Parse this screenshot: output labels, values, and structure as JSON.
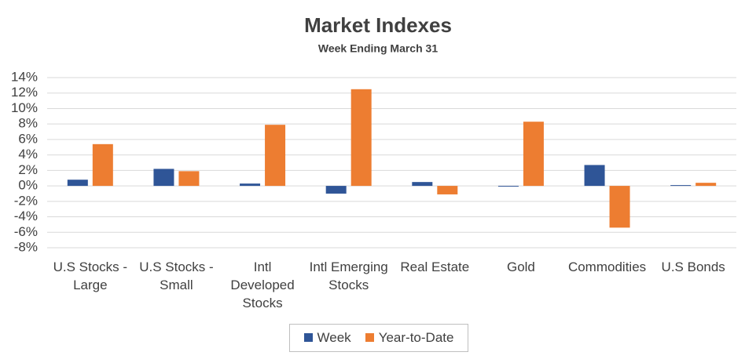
{
  "chart_data": {
    "type": "bar",
    "title": "Market Indexes",
    "subtitle": "Week Ending March 31",
    "categories": [
      "U.S Stocks -\nLarge",
      "U.S Stocks -\nSmall",
      "Intl\nDeveloped\nStocks",
      "Intl Emerging\nStocks",
      "Real Estate",
      "Gold",
      "Commodities",
      "U.S Bonds"
    ],
    "series": [
      {
        "name": "Week",
        "color": "#2f5597",
        "values": [
          0.8,
          2.2,
          0.3,
          -1.0,
          0.5,
          -0.1,
          2.7,
          0.1
        ]
      },
      {
        "name": "Year-to-Date",
        "color": "#ed7d31",
        "values": [
          5.4,
          1.9,
          7.9,
          12.5,
          -1.1,
          8.3,
          -5.4,
          0.4
        ]
      }
    ],
    "ylim": [
      -8,
      14
    ],
    "yticks": [
      {
        "value": -8,
        "label": "-8%"
      },
      {
        "value": -6,
        "label": "-6%"
      },
      {
        "value": -4,
        "label": "-4%"
      },
      {
        "value": -2,
        "label": "-2%"
      },
      {
        "value": 0,
        "label": "0%"
      },
      {
        "value": 2,
        "label": "2%"
      },
      {
        "value": 4,
        "label": "4%"
      },
      {
        "value": 6,
        "label": "6%"
      },
      {
        "value": 8,
        "label": "8%"
      },
      {
        "value": 10,
        "label": "10%"
      },
      {
        "value": 12,
        "label": "12%"
      },
      {
        "value": 14,
        "label": "14%"
      }
    ],
    "grid": true,
    "legend": "bottom"
  }
}
